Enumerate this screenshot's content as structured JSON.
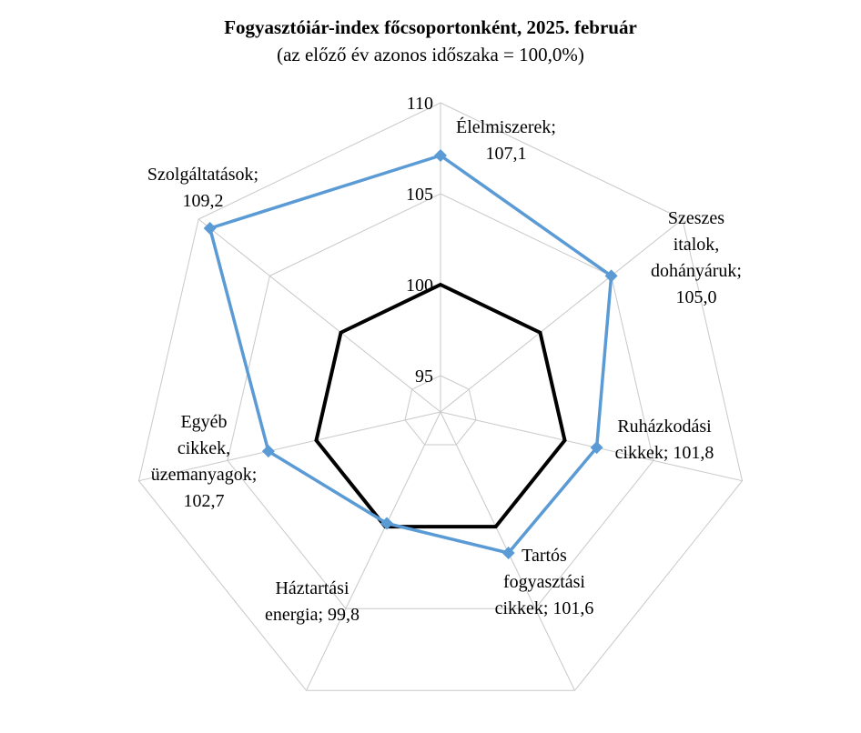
{
  "chart_data": {
    "type": "radar",
    "title": "Fogyasztóiár-index főcsoportonként, 2025. február",
    "subtitle": "(az előző év azonos időszaka = 100,0%)",
    "rlim": [
      93,
      110
    ],
    "ticks": [
      95,
      100,
      105,
      110
    ],
    "tick_labels": [
      "95",
      "100",
      "105",
      "110"
    ],
    "grid": true,
    "categories": [
      {
        "lines": [
          "Élelmiszerek;",
          "107,1"
        ]
      },
      {
        "lines": [
          "Szeszes",
          "italok,",
          "dohányáruk;",
          "105,0"
        ]
      },
      {
        "lines": [
          "Ruházkodási",
          "cikkek;  101,8"
        ]
      },
      {
        "lines": [
          "Tartós",
          "fogyasztási",
          "cikkek;  101,6"
        ]
      },
      {
        "lines": [
          "Háztartási",
          "energia;  99,8"
        ]
      },
      {
        "lines": [
          "Egyéb",
          "cikkek,",
          "üzemanyagok;",
          "102,7"
        ]
      },
      {
        "lines": [
          "Szolgáltatások;",
          "109,2"
        ]
      }
    ],
    "series": [
      {
        "values": [
          107.1,
          105.0,
          101.8,
          101.6,
          99.8,
          102.7,
          109.2
        ],
        "color": "#5b9bd5",
        "marker": "diamond"
      },
      {
        "values": [
          100,
          100,
          100,
          100,
          100,
          100,
          100
        ],
        "color": "#000000",
        "marker": "none"
      }
    ]
  }
}
